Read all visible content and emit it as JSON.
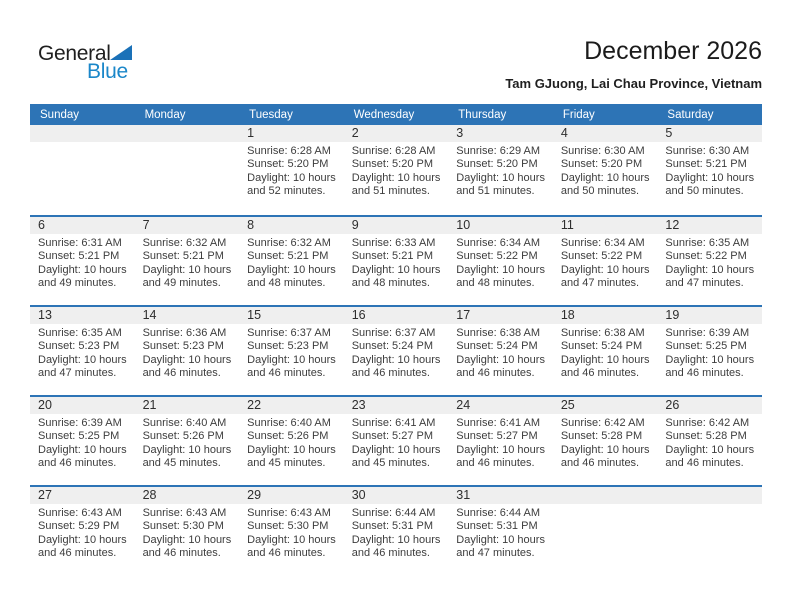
{
  "logo": {
    "part1": "General",
    "part2": "Blue",
    "triangle_icon": "blue-corner-triangle"
  },
  "header": {
    "title": "December 2026",
    "location": "Tam GJuong, Lai Chau Province, Vietnam"
  },
  "colors": {
    "primary_blue": "#2D74B6",
    "logo_text_blue": "#1B87C9",
    "logo_triangle_blue": "#1A71B8",
    "number_band_gray": "#EFEFEF",
    "body_text": "#3D3D3D"
  },
  "labels": {
    "sunrise": "Sunrise:",
    "sunset": "Sunset:",
    "daylight": "Daylight:"
  },
  "calendar": {
    "day_headers": [
      "Sunday",
      "Monday",
      "Tuesday",
      "Wednesday",
      "Thursday",
      "Friday",
      "Saturday"
    ],
    "weeks": [
      [
        null,
        null,
        {
          "day": "1",
          "sunrise": "6:28 AM",
          "sunset": "5:20 PM",
          "daylight_line1": "10 hours",
          "daylight_line2": "and 52 minutes."
        },
        {
          "day": "2",
          "sunrise": "6:28 AM",
          "sunset": "5:20 PM",
          "daylight_line1": "10 hours",
          "daylight_line2": "and 51 minutes."
        },
        {
          "day": "3",
          "sunrise": "6:29 AM",
          "sunset": "5:20 PM",
          "daylight_line1": "10 hours",
          "daylight_line2": "and 51 minutes."
        },
        {
          "day": "4",
          "sunrise": "6:30 AM",
          "sunset": "5:20 PM",
          "daylight_line1": "10 hours",
          "daylight_line2": "and 50 minutes."
        },
        {
          "day": "5",
          "sunrise": "6:30 AM",
          "sunset": "5:21 PM",
          "daylight_line1": "10 hours",
          "daylight_line2": "and 50 minutes."
        }
      ],
      [
        {
          "day": "6",
          "sunrise": "6:31 AM",
          "sunset": "5:21 PM",
          "daylight_line1": "10 hours",
          "daylight_line2": "and 49 minutes."
        },
        {
          "day": "7",
          "sunrise": "6:32 AM",
          "sunset": "5:21 PM",
          "daylight_line1": "10 hours",
          "daylight_line2": "and 49 minutes."
        },
        {
          "day": "8",
          "sunrise": "6:32 AM",
          "sunset": "5:21 PM",
          "daylight_line1": "10 hours",
          "daylight_line2": "and 48 minutes."
        },
        {
          "day": "9",
          "sunrise": "6:33 AM",
          "sunset": "5:21 PM",
          "daylight_line1": "10 hours",
          "daylight_line2": "and 48 minutes."
        },
        {
          "day": "10",
          "sunrise": "6:34 AM",
          "sunset": "5:22 PM",
          "daylight_line1": "10 hours",
          "daylight_line2": "and 48 minutes."
        },
        {
          "day": "11",
          "sunrise": "6:34 AM",
          "sunset": "5:22 PM",
          "daylight_line1": "10 hours",
          "daylight_line2": "and 47 minutes."
        },
        {
          "day": "12",
          "sunrise": "6:35 AM",
          "sunset": "5:22 PM",
          "daylight_line1": "10 hours",
          "daylight_line2": "and 47 minutes."
        }
      ],
      [
        {
          "day": "13",
          "sunrise": "6:35 AM",
          "sunset": "5:23 PM",
          "daylight_line1": "10 hours",
          "daylight_line2": "and 47 minutes."
        },
        {
          "day": "14",
          "sunrise": "6:36 AM",
          "sunset": "5:23 PM",
          "daylight_line1": "10 hours",
          "daylight_line2": "and 46 minutes."
        },
        {
          "day": "15",
          "sunrise": "6:37 AM",
          "sunset": "5:23 PM",
          "daylight_line1": "10 hours",
          "daylight_line2": "and 46 minutes."
        },
        {
          "day": "16",
          "sunrise": "6:37 AM",
          "sunset": "5:24 PM",
          "daylight_line1": "10 hours",
          "daylight_line2": "and 46 minutes."
        },
        {
          "day": "17",
          "sunrise": "6:38 AM",
          "sunset": "5:24 PM",
          "daylight_line1": "10 hours",
          "daylight_line2": "and 46 minutes."
        },
        {
          "day": "18",
          "sunrise": "6:38 AM",
          "sunset": "5:24 PM",
          "daylight_line1": "10 hours",
          "daylight_line2": "and 46 minutes."
        },
        {
          "day": "19",
          "sunrise": "6:39 AM",
          "sunset": "5:25 PM",
          "daylight_line1": "10 hours",
          "daylight_line2": "and 46 minutes."
        }
      ],
      [
        {
          "day": "20",
          "sunrise": "6:39 AM",
          "sunset": "5:25 PM",
          "daylight_line1": "10 hours",
          "daylight_line2": "and 46 minutes."
        },
        {
          "day": "21",
          "sunrise": "6:40 AM",
          "sunset": "5:26 PM",
          "daylight_line1": "10 hours",
          "daylight_line2": "and 45 minutes."
        },
        {
          "day": "22",
          "sunrise": "6:40 AM",
          "sunset": "5:26 PM",
          "daylight_line1": "10 hours",
          "daylight_line2": "and 45 minutes."
        },
        {
          "day": "23",
          "sunrise": "6:41 AM",
          "sunset": "5:27 PM",
          "daylight_line1": "10 hours",
          "daylight_line2": "and 45 minutes."
        },
        {
          "day": "24",
          "sunrise": "6:41 AM",
          "sunset": "5:27 PM",
          "daylight_line1": "10 hours",
          "daylight_line2": "and 46 minutes."
        },
        {
          "day": "25",
          "sunrise": "6:42 AM",
          "sunset": "5:28 PM",
          "daylight_line1": "10 hours",
          "daylight_line2": "and 46 minutes."
        },
        {
          "day": "26",
          "sunrise": "6:42 AM",
          "sunset": "5:28 PM",
          "daylight_line1": "10 hours",
          "daylight_line2": "and 46 minutes."
        }
      ],
      [
        {
          "day": "27",
          "sunrise": "6:43 AM",
          "sunset": "5:29 PM",
          "daylight_line1": "10 hours",
          "daylight_line2": "and 46 minutes."
        },
        {
          "day": "28",
          "sunrise": "6:43 AM",
          "sunset": "5:30 PM",
          "daylight_line1": "10 hours",
          "daylight_line2": "and 46 minutes."
        },
        {
          "day": "29",
          "sunrise": "6:43 AM",
          "sunset": "5:30 PM",
          "daylight_line1": "10 hours",
          "daylight_line2": "and 46 minutes."
        },
        {
          "day": "30",
          "sunrise": "6:44 AM",
          "sunset": "5:31 PM",
          "daylight_line1": "10 hours",
          "daylight_line2": "and 46 minutes."
        },
        {
          "day": "31",
          "sunrise": "6:44 AM",
          "sunset": "5:31 PM",
          "daylight_line1": "10 hours",
          "daylight_line2": "and 47 minutes."
        },
        null,
        null
      ]
    ]
  }
}
